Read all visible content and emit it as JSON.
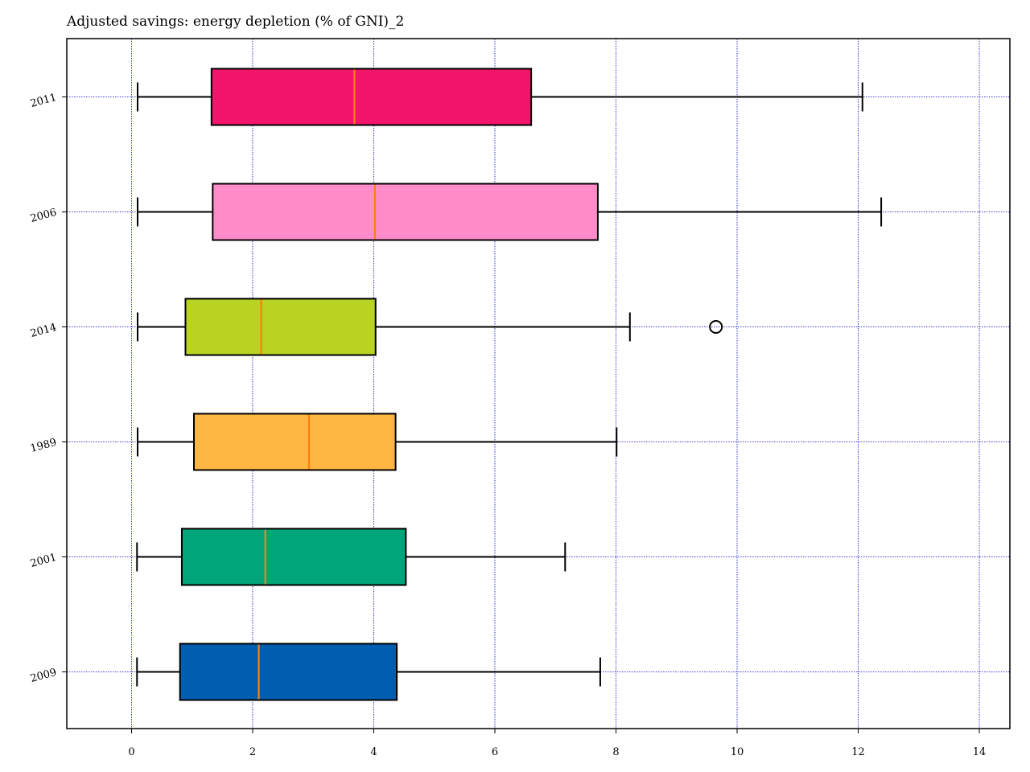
{
  "chart_data": {
    "type": "boxplot",
    "orientation": "horizontal",
    "title": "Adjusted savings: energy depletion (% of GNI)_2",
    "xlabel": "",
    "ylabel": "",
    "xlim": [
      -1.07,
      14.5
    ],
    "xticks": [
      0,
      2,
      4,
      6,
      8,
      10,
      12,
      14
    ],
    "grid": true,
    "grid_color": "#0000cc",
    "median_color": "#ff7f0e",
    "categories": [
      "2011",
      "2006",
      "2014",
      "1989",
      "2001",
      "2009"
    ],
    "boxes": [
      {
        "label": "2011",
        "whisker_low": 0.1,
        "q1": 1.32,
        "median": 3.68,
        "q3": 6.6,
        "whisker_high": 12.07,
        "outliers": [],
        "color": "#f2156b"
      },
      {
        "label": "2006",
        "whisker_low": 0.1,
        "q1": 1.34,
        "median": 4.02,
        "q3": 7.7,
        "whisker_high": 12.38,
        "outliers": [],
        "color": "#ff8cc8"
      },
      {
        "label": "2014",
        "whisker_low": 0.1,
        "q1": 0.89,
        "median": 2.14,
        "q3": 4.03,
        "whisker_high": 8.23,
        "outliers": [
          9.65
        ],
        "color": "#b8d321"
      },
      {
        "label": "1989",
        "whisker_low": 0.1,
        "q1": 1.03,
        "median": 2.93,
        "q3": 4.36,
        "whisker_high": 8.01,
        "outliers": [],
        "color": "#ffb743"
      },
      {
        "label": "2001",
        "whisker_low": 0.09,
        "q1": 0.83,
        "median": 2.21,
        "q3": 4.53,
        "whisker_high": 7.16,
        "outliers": [],
        "color": "#00a57a"
      },
      {
        "label": "2009",
        "whisker_low": 0.09,
        "q1": 0.8,
        "median": 2.1,
        "q3": 4.38,
        "whisker_high": 7.74,
        "outliers": [],
        "color": "#005eb1"
      }
    ]
  }
}
